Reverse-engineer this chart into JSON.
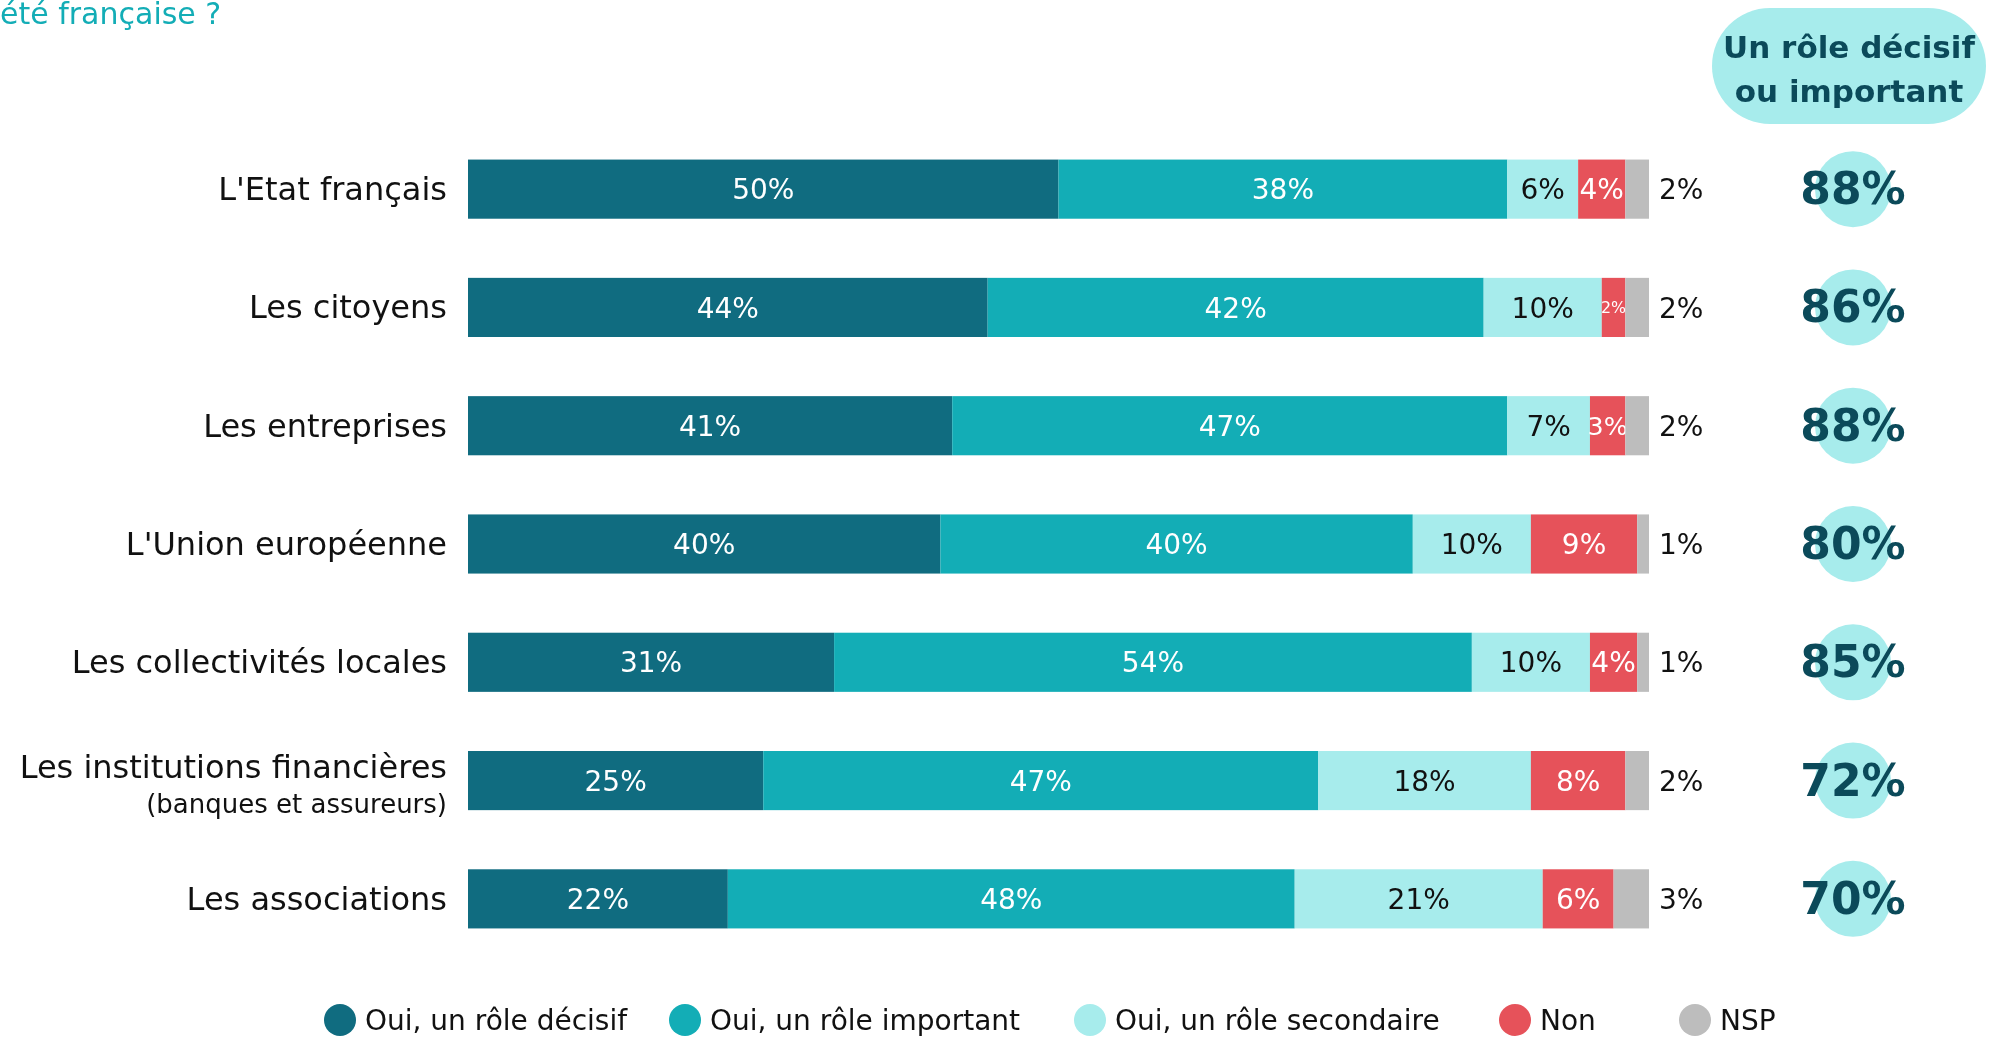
{
  "chart_data": {
    "type": "bar",
    "orientation": "horizontal",
    "stacked": true,
    "title": "été française ?",
    "categories": [
      "L'Etat français",
      "Les citoyens",
      "Les entreprises",
      "L'Union européenne",
      "Les collectivités locales",
      "Les institutions financières\n(banques et assureurs)",
      "Les associations"
    ],
    "series": [
      {
        "name": "Oui, un rôle décisif",
        "color": "#106c80",
        "values": [
          50,
          44,
          41,
          40,
          31,
          25,
          22
        ],
        "value_labels": [
          "50%",
          "44%",
          "41%",
          "40%",
          "31%",
          "25%",
          "22%"
        ]
      },
      {
        "name": "Oui, un rôle important",
        "color": "#13adb6",
        "values": [
          38,
          42,
          47,
          40,
          54,
          47,
          48
        ],
        "value_labels": [
          "38%",
          "42%",
          "47%",
          "40%",
          "54%",
          "47%",
          "48%"
        ]
      },
      {
        "name": "Oui, un rôle secondaire",
        "color": "#a7ecec",
        "values": [
          6,
          10,
          7,
          10,
          10,
          18,
          21
        ],
        "value_labels": [
          "6%",
          "10%",
          "7%",
          "10%",
          "10%",
          "18%",
          "21%"
        ]
      },
      {
        "name": "Non",
        "color": "#e6525a",
        "values": [
          4,
          2,
          3,
          9,
          4,
          8,
          6
        ],
        "value_labels": [
          "4%",
          "2%",
          "3%",
          "9%",
          "4%",
          "8%",
          "6%"
        ]
      },
      {
        "name": "NSP",
        "color": "#bdbdbd",
        "values": [
          2,
          2,
          2,
          1,
          1,
          2,
          3
        ],
        "value_labels": [
          "2%",
          "2%",
          "2%",
          "1%",
          "1%",
          "2%",
          "3%"
        ]
      }
    ],
    "tick_labels": "y",
    "legend": "bottom",
    "annotations": [
      "Un rôle décisif ou important",
      "88%",
      "86%",
      "88%",
      "80%",
      "85%",
      "72%",
      "70%"
    ]
  }
}
